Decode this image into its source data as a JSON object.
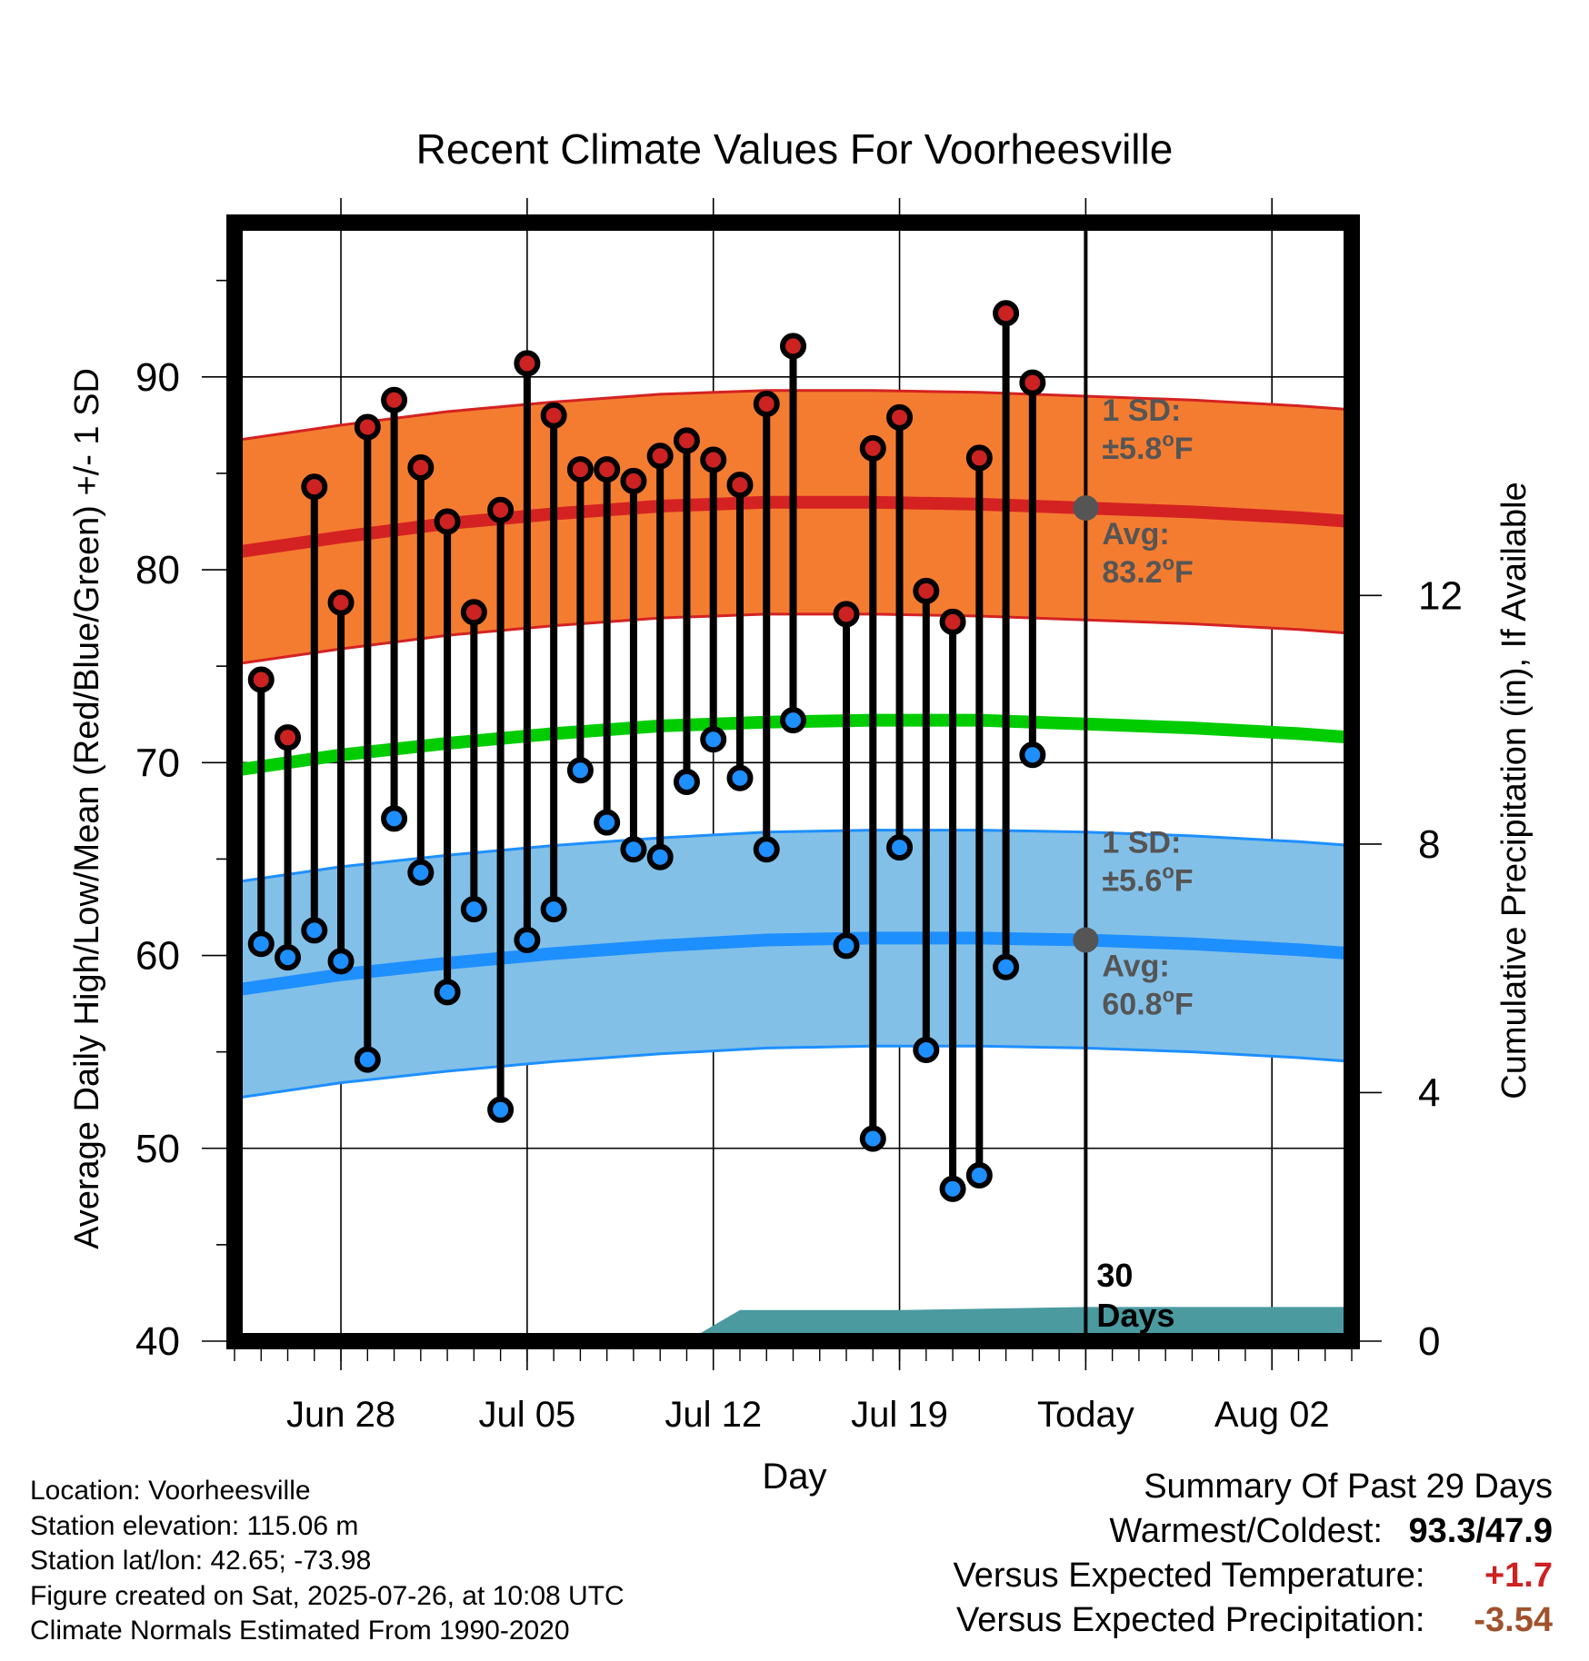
{
  "chart_data": {
    "type": "line",
    "title": "Recent Climate Values For Voorheesville",
    "xlabel": "Day",
    "ylabel": "Average Daily High/Low/Mean (Red/Blue/Green) +/- 1 SD",
    "y2label": "Cumulative Precipitation (in), If Available",
    "ylim": [
      40,
      98
    ],
    "y2lim": [
      0,
      18
    ],
    "yticks": [
      "40",
      "50",
      "60",
      "70",
      "80",
      "90"
    ],
    "y2ticks": [
      "0",
      "4",
      "8",
      "12"
    ],
    "x_range": [
      "2025-06-24",
      "2025-08-05"
    ],
    "xticks": [
      {
        "date": "2025-06-28",
        "label": "Jun 28"
      },
      {
        "date": "2025-07-05",
        "label": "Jul 05"
      },
      {
        "date": "2025-07-12",
        "label": "Jul 12"
      },
      {
        "date": "2025-07-19",
        "label": "Jul 19"
      },
      {
        "date": "2025-07-26",
        "label": "Today"
      },
      {
        "date": "2025-08-02",
        "label": "Aug 02"
      }
    ],
    "today_marker": {
      "date": "2025-07-26",
      "label_line1": "30",
      "label_line2": "Days"
    },
    "grid": true,
    "normals": {
      "x": [
        "2025-06-24",
        "2025-06-28",
        "2025-07-02",
        "2025-07-06",
        "2025-07-10",
        "2025-07-14",
        "2025-07-18",
        "2025-07-22",
        "2025-07-26",
        "2025-07-30",
        "2025-08-03",
        "2025-08-05"
      ],
      "high_mean": [
        80.9,
        81.7,
        82.4,
        82.9,
        83.3,
        83.5,
        83.5,
        83.4,
        83.2,
        83.0,
        82.7,
        82.5
      ],
      "high_sd": 5.8,
      "low_mean": [
        58.2,
        59.0,
        59.6,
        60.1,
        60.5,
        60.8,
        60.9,
        60.9,
        60.8,
        60.6,
        60.3,
        60.1
      ],
      "low_sd": 5.6,
      "daily_mean": [
        69.6,
        70.4,
        71.0,
        71.5,
        71.9,
        72.1,
        72.2,
        72.2,
        72.0,
        71.8,
        71.5,
        71.3
      ]
    },
    "series": [
      {
        "name": "High",
        "color": "#cc2222",
        "x": [
          "2025-06-25",
          "2025-06-26",
          "2025-06-27",
          "2025-06-28",
          "2025-06-29",
          "2025-06-30",
          "2025-07-01",
          "2025-07-02",
          "2025-07-03",
          "2025-07-04",
          "2025-07-05",
          "2025-07-06",
          "2025-07-07",
          "2025-07-08",
          "2025-07-09",
          "2025-07-10",
          "2025-07-11",
          "2025-07-12",
          "2025-07-13",
          "2025-07-14",
          "2025-07-15",
          "2025-07-17",
          "2025-07-18",
          "2025-07-19",
          "2025-07-20",
          "2025-07-21",
          "2025-07-22",
          "2025-07-23",
          "2025-07-24",
          "2025-07-25"
        ],
        "values": [
          74.3,
          71.3,
          84.3,
          78.3,
          87.4,
          88.8,
          85.3,
          82.5,
          77.8,
          83.1,
          90.7,
          88.0,
          85.2,
          85.2,
          84.6,
          85.9,
          86.7,
          85.7,
          84.4,
          88.6,
          91.6,
          77.7,
          86.3,
          87.9,
          78.9,
          77.3,
          85.8,
          93.3,
          89.7,
          null
        ]
      },
      {
        "name": "Low",
        "color": "#1e8fff",
        "x": [
          "2025-06-25",
          "2025-06-26",
          "2025-06-27",
          "2025-06-28",
          "2025-06-29",
          "2025-06-30",
          "2025-07-01",
          "2025-07-02",
          "2025-07-03",
          "2025-07-04",
          "2025-07-05",
          "2025-07-06",
          "2025-07-07",
          "2025-07-08",
          "2025-07-09",
          "2025-07-10",
          "2025-07-11",
          "2025-07-12",
          "2025-07-13",
          "2025-07-14",
          "2025-07-15",
          "2025-07-17",
          "2025-07-18",
          "2025-07-19",
          "2025-07-20",
          "2025-07-21",
          "2025-07-22",
          "2025-07-23",
          "2025-07-24",
          "2025-07-25"
        ],
        "values": [
          60.6,
          59.9,
          61.3,
          59.7,
          54.6,
          67.1,
          64.3,
          58.1,
          62.4,
          52.0,
          60.8,
          62.4,
          69.6,
          66.9,
          65.5,
          65.1,
          69.0,
          71.2,
          69.2,
          65.5,
          72.2,
          60.5,
          50.5,
          65.6,
          55.1,
          47.9,
          48.6,
          59.4,
          70.4,
          null
        ]
      }
    ],
    "precipitation": {
      "x": [
        "2025-06-24",
        "2025-07-11",
        "2025-07-12",
        "2025-07-13",
        "2025-07-19",
        "2025-07-26",
        "2025-08-05"
      ],
      "values": [
        0.0,
        0.0,
        0.25,
        0.5,
        0.5,
        0.55,
        0.55
      ],
      "color": "#4a9aa0"
    },
    "annotations": {
      "high": {
        "sd_label": "1 SD:",
        "sd_value": "±5.8",
        "avg_label": "Avg:",
        "avg_value": "83.2",
        "avg_y": 83.2,
        "unit": "oF"
      },
      "low": {
        "sd_label": "1 SD:",
        "sd_value": "±5.6",
        "avg_label": "Avg:",
        "avg_value": "60.8",
        "avg_y": 60.8,
        "unit": "oF"
      }
    }
  },
  "colors": {
    "high_band": "#f47c30",
    "high_line": "#d42222",
    "low_band": "#82c0e8",
    "low_line": "#1e8fff",
    "mean_line": "#00cc00",
    "annotation_text": "#555555",
    "precip": "#4a9aa0"
  },
  "metadata": {
    "location": "Location: Voorheesville",
    "elevation": "Station elevation: 115.06 m",
    "latlon": "Station lat/lon: 42.65; -73.98",
    "created": "Figure created on Sat, 2025-07-26, at 10:08 UTC",
    "normals": "Climate Normals Estimated From 1990-2020"
  },
  "summary": {
    "title": "Summary Of Past 29 Days",
    "warm_cold_label": "Warmest/Coldest:",
    "warm_cold_value": "93.3/47.9",
    "temp_label": "Versus Expected Temperature:",
    "temp_value": "+1.7",
    "temp_color": "#cc2222",
    "precip_label": "Versus Expected Precipitation:",
    "precip_value": "-3.54",
    "precip_color": "#a0522d"
  }
}
